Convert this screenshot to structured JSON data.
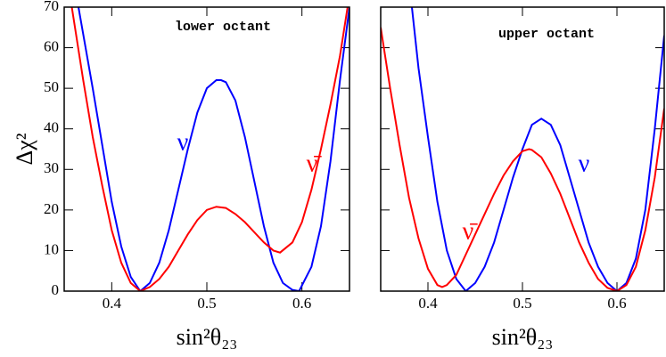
{
  "chart_data": [
    {
      "type": "line",
      "title": "lower octant",
      "ylabel": "Δχ²",
      "xlabel": "sin²θ₂₃",
      "xlim": [
        0.35,
        0.65
      ],
      "xticks": [
        0.4,
        0.5,
        0.6
      ],
      "ylim": [
        0,
        70
      ],
      "yticks": [
        0,
        10,
        20,
        30,
        40,
        50,
        60,
        70
      ],
      "ytick_labels": true,
      "series": [
        {
          "name": "ν",
          "color": "#0000ff",
          "x": [
            0.365,
            0.38,
            0.39,
            0.4,
            0.41,
            0.42,
            0.43,
            0.44,
            0.45,
            0.46,
            0.47,
            0.48,
            0.49,
            0.5,
            0.51,
            0.515,
            0.52,
            0.53,
            0.54,
            0.55,
            0.56,
            0.57,
            0.58,
            0.59,
            0.597,
            0.61,
            0.62,
            0.63,
            0.64,
            0.65
          ],
          "values": [
            70,
            50,
            36,
            22,
            11,
            3.5,
            0,
            2,
            7,
            15,
            25,
            35,
            44,
            50,
            52,
            52,
            51.5,
            47,
            38,
            27,
            16,
            7,
            2,
            0.3,
            0,
            6,
            16,
            32,
            52,
            70
          ]
        },
        {
          "name": "ν̄",
          "color": "#ff0000",
          "x": [
            0.358,
            0.37,
            0.38,
            0.39,
            0.4,
            0.41,
            0.42,
            0.43,
            0.44,
            0.45,
            0.46,
            0.47,
            0.48,
            0.49,
            0.5,
            0.51,
            0.52,
            0.53,
            0.54,
            0.55,
            0.56,
            0.57,
            0.577,
            0.59,
            0.6,
            0.61,
            0.62,
            0.63,
            0.64,
            0.648
          ],
          "values": [
            70,
            52,
            38,
            26,
            15,
            7,
            2,
            0,
            1,
            3,
            6,
            10,
            14,
            17.5,
            20,
            20.8,
            20.5,
            19,
            17,
            14.5,
            12,
            10,
            9.5,
            12,
            17,
            25,
            35,
            46,
            58,
            70
          ]
        }
      ]
    },
    {
      "type": "line",
      "title": "upper octant",
      "xlabel": "sin²θ₂₃",
      "xlim": [
        0.35,
        0.65
      ],
      "xticks": [
        0.4,
        0.5,
        0.6
      ],
      "ylim": [
        0,
        70
      ],
      "yticks": [
        0,
        10,
        20,
        30,
        40,
        50,
        60,
        70
      ],
      "ytick_labels": false,
      "series": [
        {
          "name": "ν",
          "color": "#0000ff",
          "x": [
            0.383,
            0.39,
            0.4,
            0.41,
            0.42,
            0.43,
            0.44,
            0.45,
            0.46,
            0.47,
            0.48,
            0.49,
            0.5,
            0.51,
            0.52,
            0.53,
            0.54,
            0.55,
            0.56,
            0.57,
            0.58,
            0.59,
            0.6,
            0.61,
            0.62,
            0.63,
            0.64,
            0.65
          ],
          "values": [
            70,
            55,
            38,
            22,
            10,
            3,
            0,
            2,
            6,
            12,
            20,
            28,
            35,
            41,
            42.5,
            41,
            36,
            28,
            20,
            12,
            6,
            2,
            0,
            2,
            8,
            20,
            40,
            63
          ]
        },
        {
          "name": "ν̄",
          "color": "#ff0000",
          "x": [
            0.35,
            0.36,
            0.37,
            0.38,
            0.39,
            0.4,
            0.41,
            0.415,
            0.42,
            0.43,
            0.44,
            0.45,
            0.46,
            0.47,
            0.48,
            0.49,
            0.5,
            0.507,
            0.51,
            0.52,
            0.53,
            0.54,
            0.55,
            0.56,
            0.57,
            0.58,
            0.59,
            0.6,
            0.61,
            0.62,
            0.63,
            0.64,
            0.65
          ],
          "values": [
            65,
            50,
            36,
            23,
            13,
            5.5,
            1.5,
            1,
            1.5,
            4,
            9,
            14,
            19,
            24,
            28.5,
            32,
            34.5,
            35,
            34.8,
            33,
            29,
            24,
            18,
            12,
            7,
            3,
            0.8,
            0,
            1.5,
            6,
            15,
            28,
            45
          ]
        }
      ]
    }
  ]
}
